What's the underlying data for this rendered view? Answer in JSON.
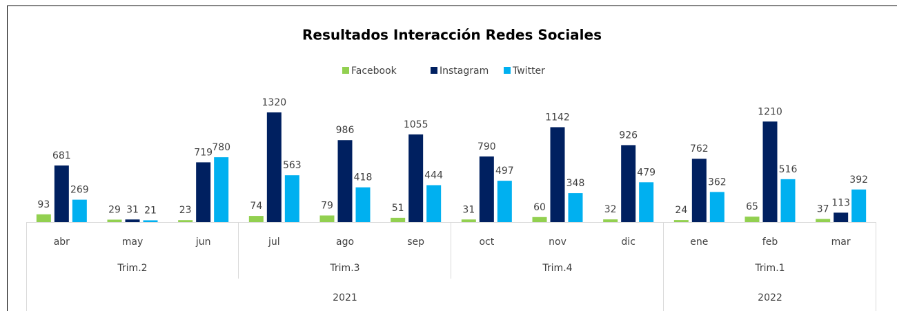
{
  "chart_data": {
    "type": "bar",
    "title": "Resultados Interacción Redes Sociales",
    "categories": [
      "abr",
      "may",
      "jun",
      "jul",
      "ago",
      "sep",
      "oct",
      "nov",
      "dic",
      "ene",
      "feb",
      "mar"
    ],
    "groups": [
      {
        "label": "Trim.2",
        "size": 3
      },
      {
        "label": "Trim.3",
        "size": 3
      },
      {
        "label": "Trim.4",
        "size": 3
      },
      {
        "label": "Trim.1",
        "size": 3
      }
    ],
    "years": [
      {
        "label": "2021",
        "size": 9
      },
      {
        "label": "2022",
        "size": 3
      }
    ],
    "series": [
      {
        "name": "Facebook",
        "color": "#92d050",
        "values": [
          93,
          29,
          23,
          74,
          79,
          51,
          31,
          60,
          32,
          24,
          65,
          37
        ]
      },
      {
        "name": "Instagram",
        "color": "#002060",
        "values": [
          681,
          31,
          719,
          1320,
          986,
          1055,
          790,
          1142,
          926,
          762,
          1210,
          113
        ]
      },
      {
        "name": "Twitter",
        "color": "#00b0f0",
        "values": [
          269,
          21,
          780,
          563,
          418,
          444,
          497,
          348,
          479,
          362,
          516,
          392
        ]
      }
    ]
  }
}
